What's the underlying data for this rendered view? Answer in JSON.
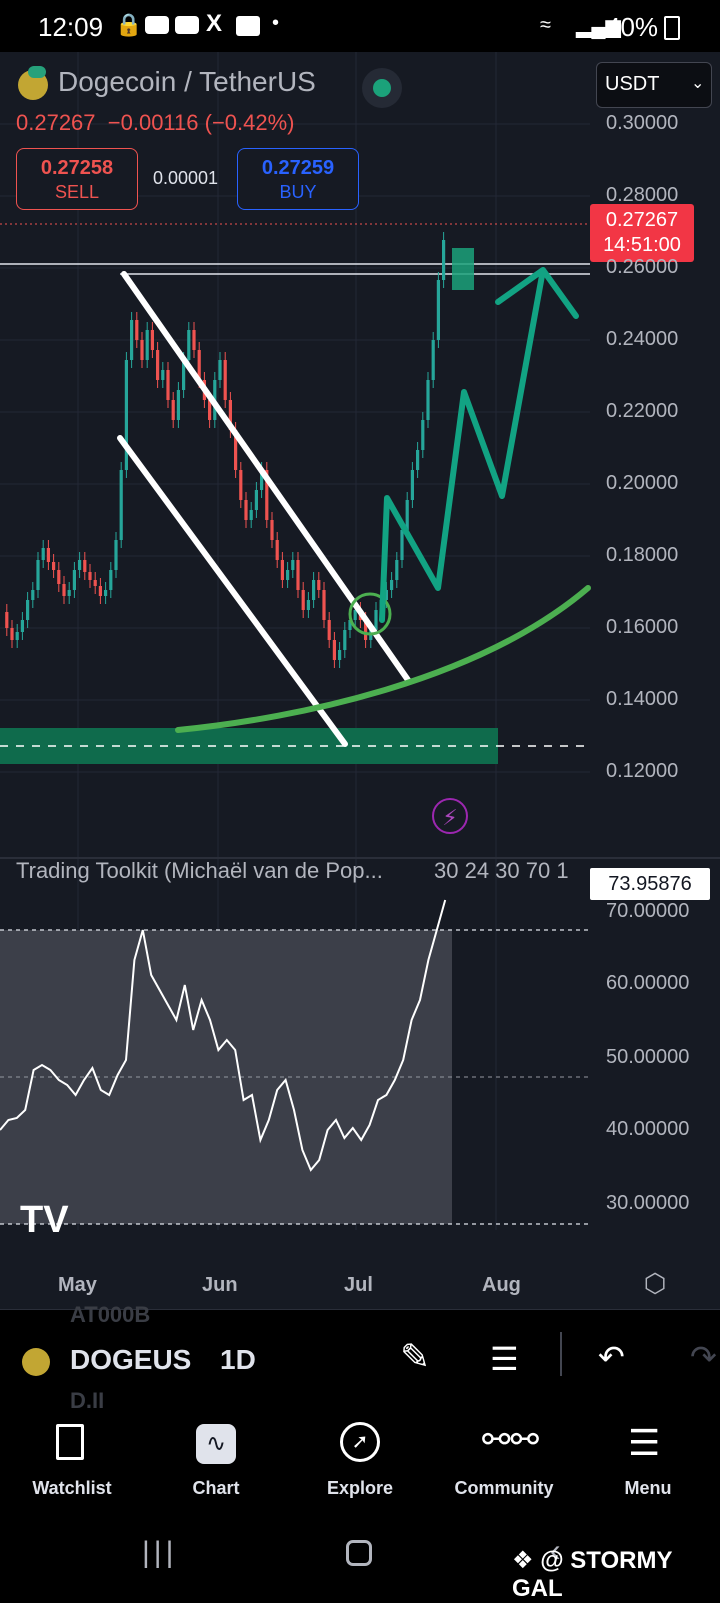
{
  "status_bar": {
    "time": "12:09",
    "battery": "40%"
  },
  "header": {
    "symbol_title": "Dogecoin / TetherUS",
    "last_price": "0.27267",
    "change": "−0.00116 (−0.42%)",
    "currency_select": "USDT",
    "status_dot_color": "#1ba27a"
  },
  "trade": {
    "sell_price": "0.27258",
    "sell_label": "SELL",
    "spread": "0.00001",
    "buy_price": "0.27259",
    "buy_label": "BUY"
  },
  "price_tag": {
    "price": "0.27267",
    "countdown": "14:51:00"
  },
  "price_axis": [
    "0.30000",
    "0.28000",
    "0.26000",
    "0.24000",
    "0.22000",
    "0.20000",
    "0.18000",
    "0.16000",
    "0.14000",
    "0.12000"
  ],
  "time_axis": [
    "May",
    "Jun",
    "Jul",
    "Aug"
  ],
  "indicator": {
    "title": "Trading Toolkit (Michaël van de Pop...",
    "params": "30 24 30 70 1",
    "value": "73.95876",
    "axis": [
      "70.00000",
      "60.00000",
      "50.00000",
      "40.00000",
      "30.00000"
    ]
  },
  "watermark_logo": "TV",
  "bottom_toolbar": {
    "ticker": "DOGEUS",
    "interval": "1D",
    "ghost_top": "AT000B",
    "ghost_bottom": "D.II"
  },
  "tabs": [
    {
      "label": "Watchlist",
      "icon": "watchlist-icon"
    },
    {
      "label": "Chart",
      "icon": "chart-icon"
    },
    {
      "label": "Explore",
      "icon": "compass-icon"
    },
    {
      "label": "Community",
      "icon": "community-icon"
    },
    {
      "label": "Menu",
      "icon": "menu-icon"
    }
  ],
  "overlay_watermark": "@ STORMY GAL",
  "colors": {
    "bg": "#161a23",
    "up": "#26a69a",
    "down": "#ef5350",
    "projection": "#12a383",
    "curve": "#4caf50",
    "support_zone": "#0f6b4c"
  }
}
